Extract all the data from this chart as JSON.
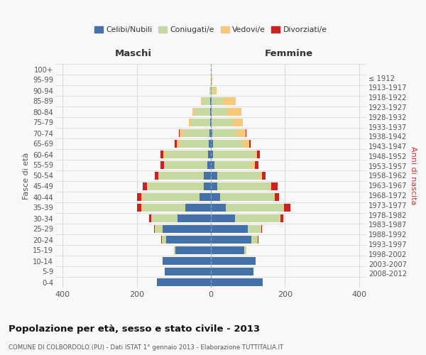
{
  "age_groups": [
    "0-4",
    "5-9",
    "10-14",
    "15-19",
    "20-24",
    "25-29",
    "30-34",
    "35-39",
    "40-44",
    "45-49",
    "50-54",
    "55-59",
    "60-64",
    "65-69",
    "70-74",
    "75-79",
    "80-84",
    "85-89",
    "90-94",
    "95-99",
    "100+"
  ],
  "birth_years": [
    "2008-2012",
    "2003-2007",
    "1998-2002",
    "1993-1997",
    "1988-1992",
    "1983-1987",
    "1978-1982",
    "1973-1977",
    "1968-1972",
    "1963-1967",
    "1958-1962",
    "1953-1957",
    "1948-1952",
    "1943-1947",
    "1938-1942",
    "1933-1937",
    "1928-1932",
    "1923-1927",
    "1918-1922",
    "1913-1917",
    "≤ 1912"
  ],
  "male": {
    "celibi": [
      145,
      125,
      130,
      95,
      120,
      130,
      90,
      70,
      30,
      20,
      20,
      10,
      8,
      5,
      4,
      2,
      2,
      2,
      0,
      0,
      0
    ],
    "coniugati": [
      0,
      0,
      0,
      5,
      10,
      20,
      70,
      115,
      155,
      150,
      120,
      115,
      115,
      80,
      70,
      50,
      40,
      20,
      3,
      0,
      0
    ],
    "vedovi": [
      0,
      0,
      0,
      0,
      2,
      2,
      2,
      2,
      2,
      2,
      2,
      2,
      5,
      8,
      10,
      8,
      8,
      5,
      0,
      0,
      0
    ],
    "divorziati": [
      0,
      0,
      0,
      0,
      2,
      2,
      5,
      12,
      12,
      12,
      10,
      10,
      8,
      5,
      2,
      0,
      0,
      0,
      0,
      0,
      0
    ]
  },
  "female": {
    "nubili": [
      140,
      115,
      120,
      90,
      110,
      100,
      65,
      40,
      25,
      18,
      18,
      10,
      5,
      5,
      4,
      2,
      2,
      2,
      0,
      0,
      0
    ],
    "coniugate": [
      0,
      0,
      0,
      5,
      15,
      35,
      120,
      155,
      145,
      140,
      115,
      100,
      110,
      80,
      65,
      55,
      40,
      30,
      8,
      2,
      0
    ],
    "vedove": [
      0,
      0,
      0,
      0,
      2,
      2,
      2,
      2,
      2,
      5,
      5,
      8,
      10,
      18,
      25,
      30,
      40,
      35,
      8,
      2,
      0
    ],
    "divorziate": [
      0,
      0,
      0,
      0,
      2,
      2,
      8,
      18,
      12,
      18,
      10,
      10,
      8,
      5,
      2,
      0,
      0,
      0,
      0,
      0,
      0
    ]
  },
  "colors": {
    "celibi_nubili": "#4472a8",
    "coniugati_e": "#c5d9a0",
    "vedovi_e": "#f5c87a",
    "divorziati_e": "#cc2222"
  },
  "xlim": 420,
  "title": "Popolazione per età, sesso e stato civile - 2013",
  "subtitle": "COMUNE DI COLBORDOLO (PU) - Dati ISTAT 1° gennaio 2013 - Elaborazione TUTTITALIA.IT",
  "ylabel_left": "Fasce di età",
  "ylabel_right": "Anni di nascita",
  "xlabel_left": "Maschi",
  "xlabel_right": "Femmine",
  "legend_labels": [
    "Celibi/Nubili",
    "Coniugati/e",
    "Vedovi/e",
    "Divorziati/e"
  ],
  "bg_color": "#f8f8f8",
  "grid_color": "#cccccc"
}
